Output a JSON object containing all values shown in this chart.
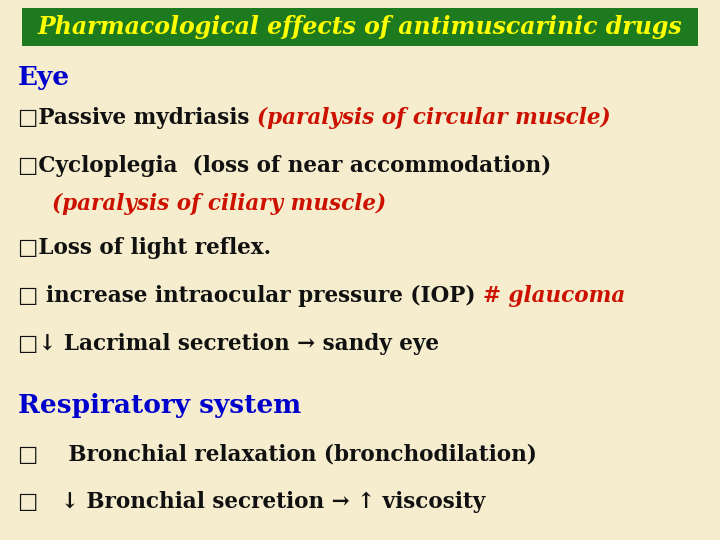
{
  "title": "Pharmacological effects of antimuscarinic drugs",
  "title_bg_color": "#1e7a1e",
  "title_text_color": "#ffff00",
  "bg_color": "#f5edce",
  "eye_label": "Eye",
  "section_color": "#0000cc",
  "resp_label": "Respiratory system",
  "body_color": "#111111",
  "red_color": "#cc1100",
  "figsize": [
    7.2,
    5.4
  ],
  "dpi": 100,
  "title_fontsize": 17,
  "heading_fontsize": 19,
  "body_fontsize": 15.5
}
